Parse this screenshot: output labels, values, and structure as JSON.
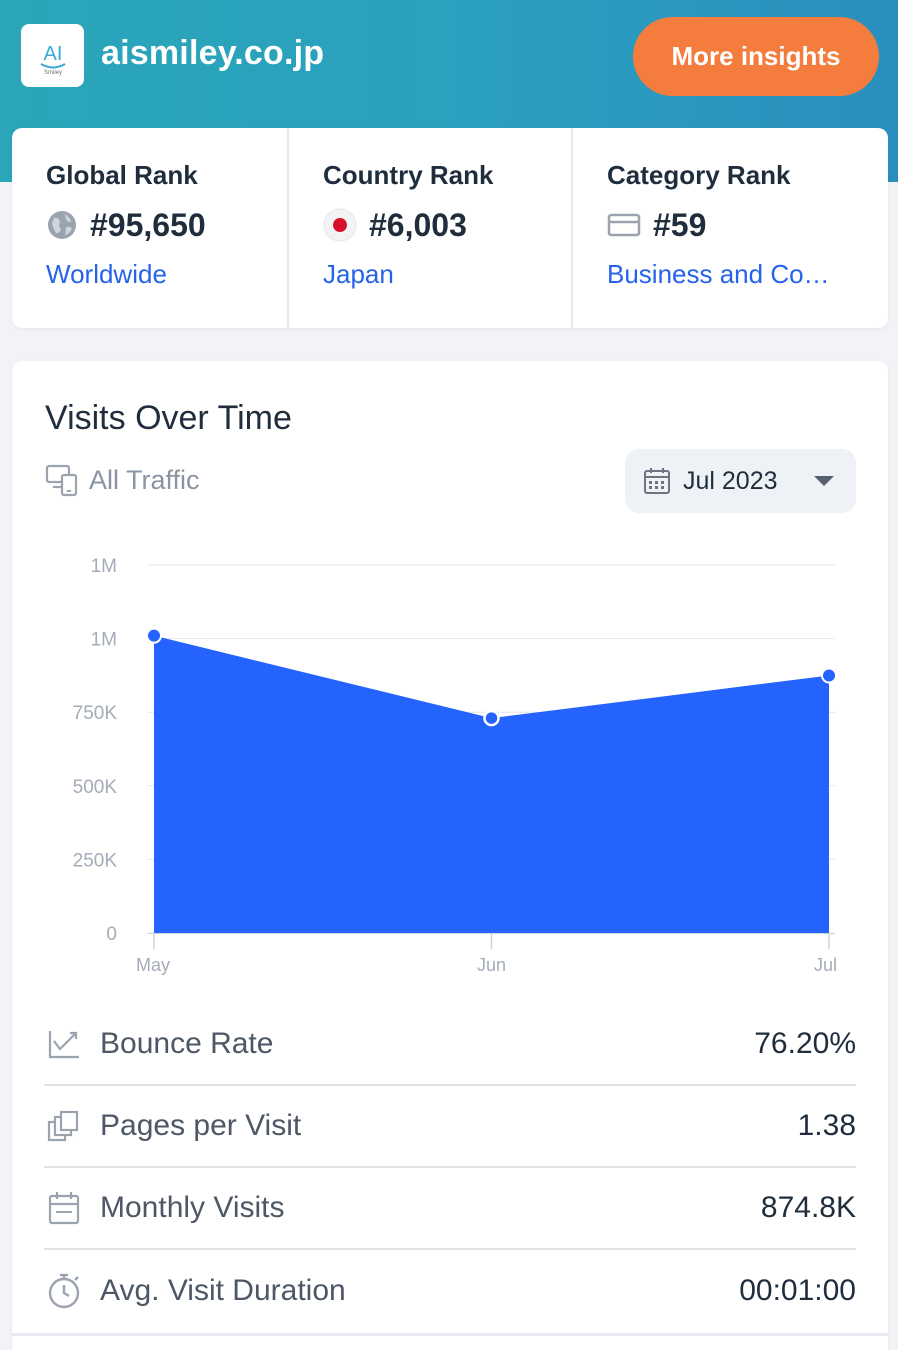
{
  "header": {
    "site_name": "aismiley.co.jp",
    "logo_text": "AI",
    "logo_subtext": "Smiley",
    "more_insights_label": "More insights"
  },
  "ranks": {
    "global": {
      "label": "Global Rank",
      "value": "#95,650",
      "link": "Worldwide",
      "icon": "globe-icon"
    },
    "country": {
      "label": "Country Rank",
      "value": "#6,003",
      "link": "Japan",
      "icon": "japan-flag-icon"
    },
    "category": {
      "label": "Category Rank",
      "value": "#59",
      "link": "Business and Co…",
      "icon": "category-icon"
    }
  },
  "visits": {
    "title": "Visits Over Time",
    "traffic_label": "All Traffic",
    "date_label": "Jul 2023"
  },
  "chart_data": {
    "type": "area",
    "categories": [
      "May",
      "Jun",
      "Jul"
    ],
    "values": [
      1010000,
      730000,
      874800
    ],
    "y_ticks": [
      "0",
      "250K",
      "500K",
      "750K",
      "1M",
      "1M"
    ],
    "ylim": [
      0,
      1250000
    ],
    "grid": true,
    "color": "#2563ff"
  },
  "metrics": [
    {
      "label": "Bounce Rate",
      "value": "76.20%",
      "icon": "trend-icon"
    },
    {
      "label": "Pages per Visit",
      "value": "1.38",
      "icon": "pages-icon"
    },
    {
      "label": "Monthly Visits",
      "value": "874.8K",
      "icon": "calendar-icon"
    },
    {
      "label": "Avg. Visit Duration",
      "value": "00:01:00",
      "icon": "stopwatch-icon"
    }
  ],
  "colors": {
    "accent_orange": "#f47c3c",
    "link_blue": "#2563eb",
    "header_teal": "#2aa6b8"
  }
}
